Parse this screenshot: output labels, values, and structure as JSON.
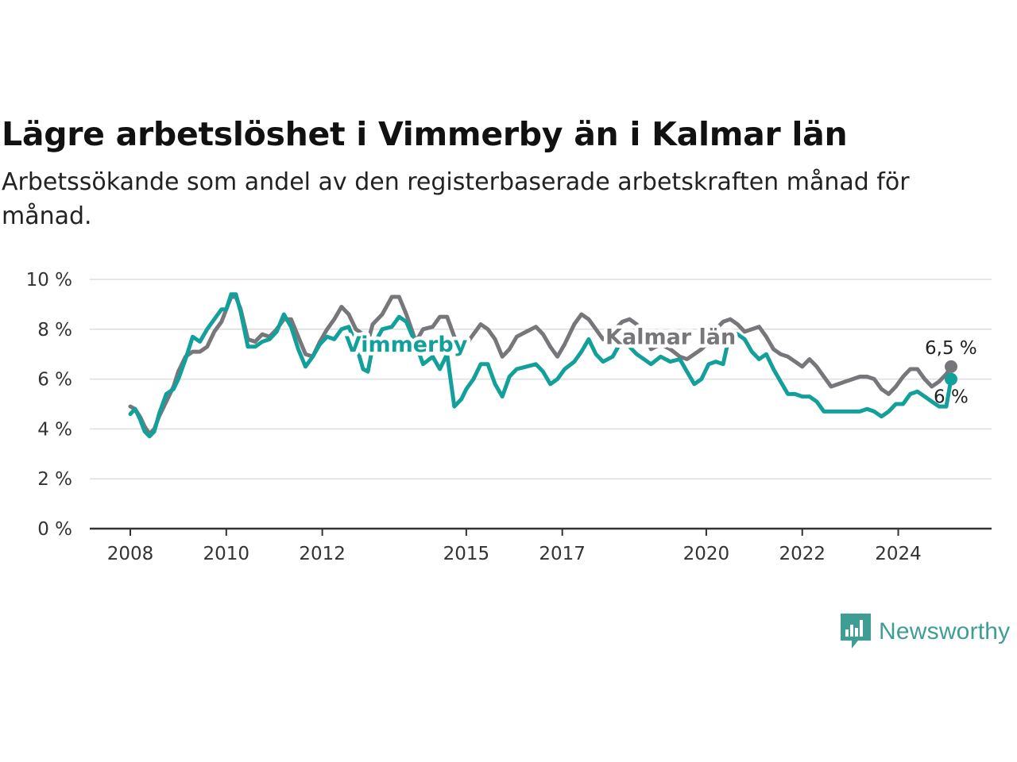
{
  "header": {
    "title": "Lägre arbetslöshet i Vimmerby än i Kalmar län",
    "subtitle": "Arbetssökande som andel av den registerbaserade arbetskraften månad för månad."
  },
  "brand": {
    "name": "Newsworthy",
    "icon": "newsworthy-logo-icon",
    "color": "#3f9e94"
  },
  "chart_data": {
    "type": "line",
    "title": "Lägre arbetslöshet i Vimmerby än i Kalmar län",
    "subtitle": "Arbetssökande som andel av den registerbaserade arbetskraften månad för månad.",
    "xlabel": "",
    "ylabel": "",
    "xlim": [
      2008.0,
      2025.5
    ],
    "ylim": [
      0,
      10
    ],
    "x_ticks": [
      {
        "value": 2008,
        "label": "2008"
      },
      {
        "value": 2010,
        "label": "2010"
      },
      {
        "value": 2012,
        "label": "2012"
      },
      {
        "value": 2015,
        "label": "2015"
      },
      {
        "value": 2017,
        "label": "2017"
      },
      {
        "value": 2020,
        "label": "2020"
      },
      {
        "value": 2022,
        "label": "2022"
      },
      {
        "value": 2024,
        "label": "2024"
      }
    ],
    "y_ticks": [
      {
        "value": 0,
        "label": "0 %"
      },
      {
        "value": 2,
        "label": "2 %"
      },
      {
        "value": 4,
        "label": "4 %"
      },
      {
        "value": 6,
        "label": "6 %"
      },
      {
        "value": 8,
        "label": "8 %"
      },
      {
        "value": 10,
        "label": "10 %"
      }
    ],
    "grid": true,
    "legend": "none (direct labels on lines)",
    "series": [
      {
        "name": "Kalmar län",
        "color": "#77777b",
        "end_label": "6,5 %",
        "label_x": 2017.9,
        "label_y": 7.4,
        "points": [
          [
            2008.0,
            4.9
          ],
          [
            2008.1,
            4.8
          ],
          [
            2008.2,
            4.5
          ],
          [
            2008.3,
            4.1
          ],
          [
            2008.4,
            3.8
          ],
          [
            2008.5,
            4.0
          ],
          [
            2008.6,
            4.5
          ],
          [
            2008.75,
            5.1
          ],
          [
            2008.9,
            5.7
          ],
          [
            2009.0,
            6.3
          ],
          [
            2009.15,
            6.9
          ],
          [
            2009.3,
            7.1
          ],
          [
            2009.45,
            7.1
          ],
          [
            2009.6,
            7.3
          ],
          [
            2009.75,
            7.9
          ],
          [
            2009.9,
            8.3
          ],
          [
            2010.0,
            8.8
          ],
          [
            2010.1,
            9.3
          ],
          [
            2010.2,
            9.3
          ],
          [
            2010.3,
            8.8
          ],
          [
            2010.45,
            7.6
          ],
          [
            2010.6,
            7.5
          ],
          [
            2010.75,
            7.8
          ],
          [
            2010.9,
            7.7
          ],
          [
            2011.05,
            8.0
          ],
          [
            2011.2,
            8.4
          ],
          [
            2011.35,
            8.4
          ],
          [
            2011.5,
            7.7
          ],
          [
            2011.65,
            7.0
          ],
          [
            2011.8,
            6.9
          ],
          [
            2011.95,
            7.5
          ],
          [
            2012.1,
            8.0
          ],
          [
            2012.25,
            8.4
          ],
          [
            2012.4,
            8.9
          ],
          [
            2012.55,
            8.6
          ],
          [
            2012.7,
            8.0
          ],
          [
            2012.85,
            7.8
          ],
          [
            2012.95,
            7.5
          ],
          [
            2013.05,
            8.2
          ],
          [
            2013.25,
            8.6
          ],
          [
            2013.45,
            9.3
          ],
          [
            2013.6,
            9.3
          ],
          [
            2013.75,
            8.6
          ],
          [
            2013.95,
            7.5
          ],
          [
            2014.1,
            8.0
          ],
          [
            2014.3,
            8.1
          ],
          [
            2014.45,
            8.5
          ],
          [
            2014.6,
            8.5
          ],
          [
            2014.75,
            7.7
          ],
          [
            2014.9,
            7.3
          ],
          [
            2015.0,
            7.4
          ],
          [
            2015.15,
            7.8
          ],
          [
            2015.3,
            8.2
          ],
          [
            2015.45,
            8.0
          ],
          [
            2015.6,
            7.6
          ],
          [
            2015.75,
            6.9
          ],
          [
            2015.9,
            7.2
          ],
          [
            2016.05,
            7.7
          ],
          [
            2016.25,
            7.9
          ],
          [
            2016.45,
            8.1
          ],
          [
            2016.6,
            7.8
          ],
          [
            2016.75,
            7.3
          ],
          [
            2016.9,
            6.9
          ],
          [
            2017.05,
            7.4
          ],
          [
            2017.25,
            8.2
          ],
          [
            2017.4,
            8.6
          ],
          [
            2017.55,
            8.4
          ],
          [
            2017.7,
            8.0
          ],
          [
            2017.85,
            7.6
          ],
          [
            2018.05,
            7.9
          ],
          [
            2018.25,
            8.3
          ],
          [
            2018.4,
            8.4
          ],
          [
            2018.55,
            8.2
          ],
          [
            2018.7,
            7.8
          ],
          [
            2018.85,
            7.2
          ],
          [
            2019.05,
            7.4
          ],
          [
            2019.25,
            7.2
          ],
          [
            2019.45,
            6.9
          ],
          [
            2019.6,
            6.8
          ],
          [
            2019.75,
            7.0
          ],
          [
            2019.9,
            7.2
          ],
          [
            2020.05,
            7.5
          ],
          [
            2020.2,
            8.0
          ],
          [
            2020.35,
            8.3
          ],
          [
            2020.5,
            8.4
          ],
          [
            2020.65,
            8.2
          ],
          [
            2020.8,
            7.9
          ],
          [
            2020.95,
            8.0
          ],
          [
            2021.1,
            8.1
          ],
          [
            2021.25,
            7.7
          ],
          [
            2021.4,
            7.2
          ],
          [
            2021.55,
            7.0
          ],
          [
            2021.7,
            6.9
          ],
          [
            2021.85,
            6.7
          ],
          [
            2022.0,
            6.5
          ],
          [
            2022.15,
            6.8
          ],
          [
            2022.3,
            6.5
          ],
          [
            2022.45,
            6.1
          ],
          [
            2022.6,
            5.7
          ],
          [
            2022.75,
            5.8
          ],
          [
            2022.9,
            5.9
          ],
          [
            2023.05,
            6.0
          ],
          [
            2023.2,
            6.1
          ],
          [
            2023.35,
            6.1
          ],
          [
            2023.5,
            6.0
          ],
          [
            2023.65,
            5.6
          ],
          [
            2023.8,
            5.4
          ],
          [
            2023.95,
            5.7
          ],
          [
            2024.1,
            6.1
          ],
          [
            2024.25,
            6.4
          ],
          [
            2024.4,
            6.4
          ],
          [
            2024.55,
            6.0
          ],
          [
            2024.7,
            5.7
          ],
          [
            2024.85,
            5.9
          ],
          [
            2025.0,
            6.2
          ],
          [
            2025.1,
            6.5
          ]
        ]
      },
      {
        "name": "Vimmerby",
        "color": "#13a09a",
        "end_label": "6 %",
        "label_x": 2012.4,
        "label_y": 7.1,
        "points": [
          [
            2008.0,
            4.6
          ],
          [
            2008.1,
            4.8
          ],
          [
            2008.2,
            4.4
          ],
          [
            2008.3,
            3.9
          ],
          [
            2008.4,
            3.7
          ],
          [
            2008.5,
            3.9
          ],
          [
            2008.6,
            4.6
          ],
          [
            2008.75,
            5.4
          ],
          [
            2008.9,
            5.6
          ],
          [
            2009.0,
            6.0
          ],
          [
            2009.15,
            6.8
          ],
          [
            2009.3,
            7.7
          ],
          [
            2009.45,
            7.5
          ],
          [
            2009.6,
            8.0
          ],
          [
            2009.75,
            8.4
          ],
          [
            2009.9,
            8.8
          ],
          [
            2010.0,
            8.8
          ],
          [
            2010.1,
            9.4
          ],
          [
            2010.2,
            9.4
          ],
          [
            2010.3,
            8.7
          ],
          [
            2010.45,
            7.3
          ],
          [
            2010.6,
            7.3
          ],
          [
            2010.75,
            7.5
          ],
          [
            2010.9,
            7.6
          ],
          [
            2011.05,
            7.9
          ],
          [
            2011.2,
            8.6
          ],
          [
            2011.35,
            8.1
          ],
          [
            2011.5,
            7.2
          ],
          [
            2011.65,
            6.5
          ],
          [
            2011.8,
            6.9
          ],
          [
            2011.95,
            7.4
          ],
          [
            2012.1,
            7.7
          ],
          [
            2012.25,
            7.6
          ],
          [
            2012.4,
            8.0
          ],
          [
            2012.55,
            8.1
          ],
          [
            2012.7,
            7.4
          ],
          [
            2012.85,
            6.4
          ],
          [
            2012.95,
            6.3
          ],
          [
            2013.05,
            7.3
          ],
          [
            2013.25,
            8.0
          ],
          [
            2013.45,
            8.1
          ],
          [
            2013.6,
            8.5
          ],
          [
            2013.75,
            8.3
          ],
          [
            2013.95,
            7.4
          ],
          [
            2014.1,
            6.6
          ],
          [
            2014.3,
            6.9
          ],
          [
            2014.45,
            6.4
          ],
          [
            2014.6,
            7.0
          ],
          [
            2014.75,
            4.9
          ],
          [
            2014.9,
            5.2
          ],
          [
            2015.0,
            5.6
          ],
          [
            2015.15,
            6.0
          ],
          [
            2015.3,
            6.6
          ],
          [
            2015.45,
            6.6
          ],
          [
            2015.6,
            5.8
          ],
          [
            2015.75,
            5.3
          ],
          [
            2015.9,
            6.1
          ],
          [
            2016.05,
            6.4
          ],
          [
            2016.25,
            6.5
          ],
          [
            2016.45,
            6.6
          ],
          [
            2016.6,
            6.3
          ],
          [
            2016.75,
            5.8
          ],
          [
            2016.9,
            6.0
          ],
          [
            2017.05,
            6.4
          ],
          [
            2017.25,
            6.7
          ],
          [
            2017.4,
            7.1
          ],
          [
            2017.55,
            7.6
          ],
          [
            2017.7,
            7.0
          ],
          [
            2017.85,
            6.7
          ],
          [
            2018.05,
            6.9
          ],
          [
            2018.25,
            7.6
          ],
          [
            2018.4,
            7.3
          ],
          [
            2018.55,
            7.0
          ],
          [
            2018.7,
            6.8
          ],
          [
            2018.85,
            6.6
          ],
          [
            2019.05,
            6.9
          ],
          [
            2019.25,
            6.7
          ],
          [
            2019.45,
            6.8
          ],
          [
            2019.6,
            6.3
          ],
          [
            2019.75,
            5.8
          ],
          [
            2019.9,
            6.0
          ],
          [
            2020.05,
            6.6
          ],
          [
            2020.2,
            6.7
          ],
          [
            2020.35,
            6.6
          ],
          [
            2020.5,
            7.9
          ],
          [
            2020.65,
            7.8
          ],
          [
            2020.8,
            7.6
          ],
          [
            2020.95,
            7.1
          ],
          [
            2021.1,
            6.8
          ],
          [
            2021.25,
            7.0
          ],
          [
            2021.4,
            6.4
          ],
          [
            2021.55,
            5.9
          ],
          [
            2021.7,
            5.4
          ],
          [
            2021.85,
            5.4
          ],
          [
            2022.0,
            5.3
          ],
          [
            2022.15,
            5.3
          ],
          [
            2022.3,
            5.1
          ],
          [
            2022.45,
            4.7
          ],
          [
            2022.6,
            4.7
          ],
          [
            2022.75,
            4.7
          ],
          [
            2022.9,
            4.7
          ],
          [
            2023.05,
            4.7
          ],
          [
            2023.2,
            4.7
          ],
          [
            2023.35,
            4.8
          ],
          [
            2023.5,
            4.7
          ],
          [
            2023.65,
            4.5
          ],
          [
            2023.8,
            4.7
          ],
          [
            2023.95,
            5.0
          ],
          [
            2024.1,
            5.0
          ],
          [
            2024.25,
            5.4
          ],
          [
            2024.4,
            5.5
          ],
          [
            2024.55,
            5.3
          ],
          [
            2024.7,
            5.1
          ],
          [
            2024.85,
            4.9
          ],
          [
            2025.0,
            4.9
          ],
          [
            2025.1,
            6.0
          ]
        ]
      }
    ]
  }
}
